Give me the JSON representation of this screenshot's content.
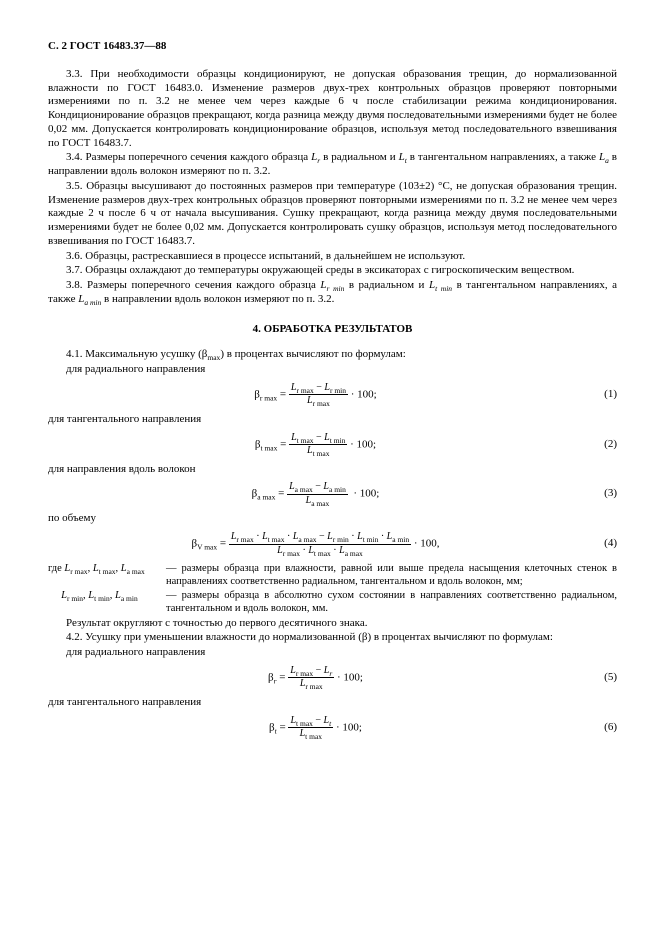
{
  "header": "С. 2 ГОСТ 16483.37—88",
  "p33": "3.3. При необходимости образцы кондиционируют, не допуская образования трещин, до нормализованной влажности по ГОСТ 16483.0. Изменение размеров двух-трех контрольных образ­цов проверяют повторными измерениями по п. 3.2 не менее чем через каждые 6 ч после стабили­зации режима кондиционирования. Кондиционирование образцов прекращают, когда разница между двумя последовательными измерениями будет не более 0,02 мм. Допускается контролировать кондиционирование образцов, используя метод последовательного взвешивания по ГОСТ 16483.7.",
  "p34a": "3.4. Размеры поперечного сечения каждого образца ",
  "p34b": " в радиальном и ",
  "p34c": " в тангентальном направлениях, а также ",
  "p34d": " в направлении вдоль волокон измеряют по п. 3.2.",
  "p35": "3.5. Образцы высушивают до постоянных размеров при температуре (103±2) °С, не допуская образования трещин. Изменение размеров двух-трех контрольных образцов проверяют повторными измерениями по п. 3.2 не менее чем через каждые 2 ч после 6 ч от начала высушивания. Сушку прекращают, когда разница между двумя последовательными измерениями будет не более 0,02 мм. Допускается контролировать сушку образцов, используя метод последовательного взвешивания по ГОСТ 16483.7.",
  "p36": "3.6. Образцы, растрескавшиеся в процессе испытаний, в дальнейшем не используют.",
  "p37": "3.7. Образцы охлаждают до температуры окружающей среды в эксикаторах с гигроскопическим веществом.",
  "p38a": "3.8. Размеры поперечного сечения каждого образца ",
  "p38b": " в радиальном и ",
  "p38c": " в тангентальном направлениях, а также ",
  "p38d": " в направлении вдоль волокон измеряют по п. 3.2.",
  "sectionTitle": "4. ОБРАБОТКА РЕЗУЛЬТАТОВ",
  "p41a": "4.1. Максимальную усушку (β",
  "p41b": ") в процентах вычисляют по формулам:",
  "forRadial": "для радиального направления",
  "forTang": "для тангентального направления",
  "forAlong": "для направления вдоль волокон",
  "forVolume": "по объему",
  "eq1_left": "β",
  "eq_sub_rmax": "r max",
  "eq_eq": " = ",
  "eq1_num_a": "L",
  "eq1_num_b": " − L",
  "eq_sub_rmin": "r min",
  "eq1_den": "L",
  "eq_tail": " · 100;",
  "eq_tail_comma": " · 100,",
  "eq_sub_tmax": "t max",
  "eq_sub_tmin": "t min",
  "eq_sub_amax": "a max",
  "eq_sub_amin": "a min",
  "eq_sub_Vmax": "V max",
  "eqNum1": "(1)",
  "eqNum2": "(2)",
  "eqNum3": "(3)",
  "eqNum4": "(4)",
  "eqNum5": "(5)",
  "eqNum6": "(6)",
  "whereWord": "где ",
  "where1_left": "L<sub>r max</sub>, L<sub>t max</sub>, L<sub>a max</sub>",
  "where1_right": "— размеры образца при влажности, равной или выше предела насыщения клеточных стенок в направлениях соответственно радиальном, танген­тальном и вдоль волокон, мм;",
  "where2_left": "L<sub>r min</sub>, L<sub>t min</sub>, L<sub>a min</sub>",
  "where2_right": "— размеры образца в абсолютно сухом состоянии в направлениях соответст­венно радиальном, тангентальном и вдоль волокон, мм.",
  "pRound": "Результат округляют с точностью до первого десятичного знака.",
  "p42": "4.2. Усушку при уменьшении влажности до нормализованной (β) в процентах вычисляют по формулам:",
  "eq5_sub_r": "r",
  "eq5_num_b_sub": "r",
  "eq6_sub_t": "t",
  "eq6_num_b_sub": "t",
  "sym_Lr": "L<sub>r</sub>",
  "sym_Lt": "L<sub>t</sub>",
  "sym_La": "L<sub>a</sub>",
  "sym_Lrmin": "L<sub>r min</sub>",
  "sym_Ltmin": "L<sub>t min</sub>",
  "sym_Lamin": "L<sub>a min</sub>",
  "sym_max": "max"
}
